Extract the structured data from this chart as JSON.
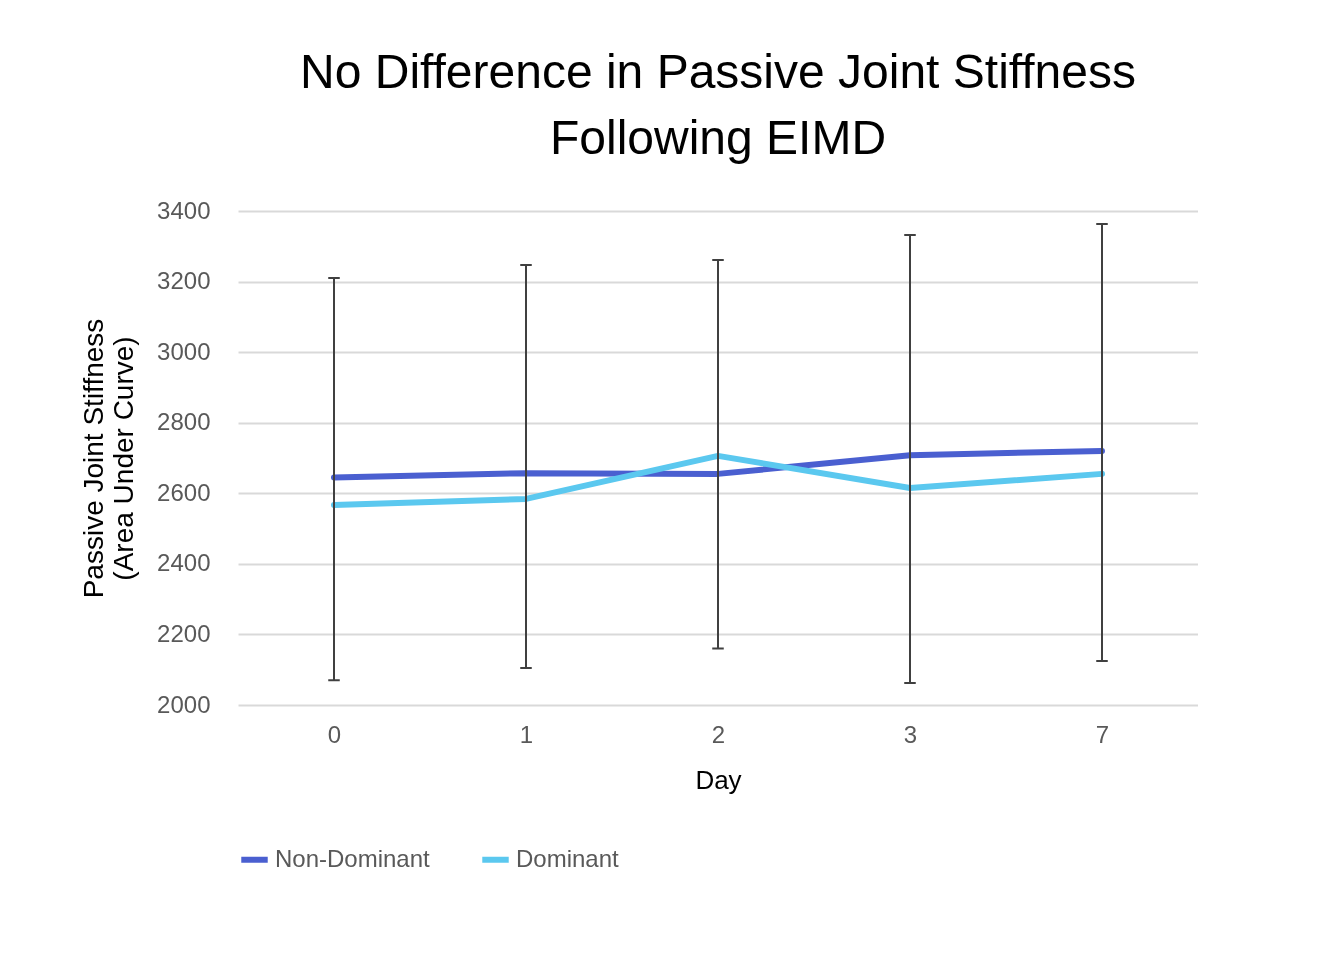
{
  "chart_data": {
    "type": "line",
    "title": "No Difference in Passive Joint Stiffness Following EIMD",
    "xlabel": "Day",
    "ylabel": "Passive Joint Stiffness (Area Under Curve)",
    "categories": [
      "0",
      "1",
      "2",
      "3",
      "7"
    ],
    "series": [
      {
        "name": "Non-Dominant",
        "color": "#4a5fd0",
        "values": [
          2645,
          2657,
          2655,
          2708,
          2720
        ],
        "errors": [
          [
            2070,
            3210
          ],
          [
            2105,
            3247
          ],
          [
            2160,
            3261
          ],
          [
            2062,
            3332
          ],
          [
            2125,
            3363
          ]
        ]
      },
      {
        "name": "Dominant",
        "color": "#5bc8ef",
        "values": [
          2567,
          2584,
          2706,
          2615,
          2655
        ]
      }
    ],
    "ylim": [
      2000,
      3400
    ],
    "yticks": [
      2000,
      2200,
      2400,
      2600,
      2800,
      3000,
      3200,
      3400
    ],
    "grid": "y",
    "legend": "bottom",
    "marker": "none",
    "line_style": "solid"
  }
}
